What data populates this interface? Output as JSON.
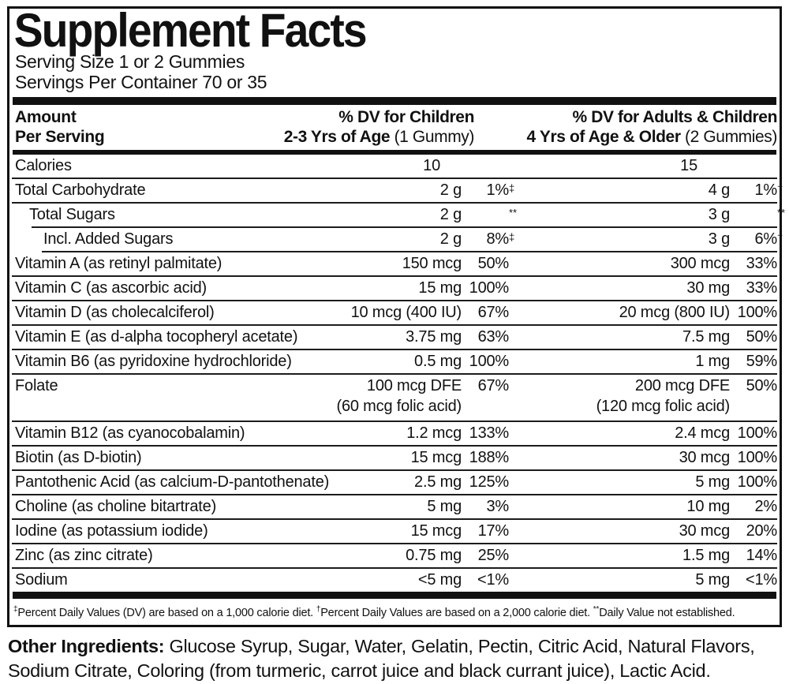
{
  "panel": {
    "title": "Supplement Facts",
    "serving_size": "Serving Size 1 or 2 Gummies",
    "servings_per_container": "Servings Per Container 70 or 35",
    "header": {
      "amount_line1": "Amount",
      "amount_line2": "Per Serving",
      "children": {
        "line1": "% DV for Children",
        "line2_bold": "2-3 Yrs of Age",
        "line2_normal": " (1 Gummy)"
      },
      "adults": {
        "line1": "% DV for Adults & Children",
        "line2_bold": "4 Yrs of Age & Older",
        "line2_normal": " (2 Gummies)"
      }
    },
    "rows": [
      {
        "label": "Calories",
        "cal": true,
        "a1": "10",
        "a2": "15"
      },
      {
        "label": "Total Carbohydrate",
        "sep": 0,
        "a1": "2 g",
        "dv1": "1%",
        "dv1s": "‡",
        "a2": "4 g",
        "dv2": "1%",
        "dv2s": "†"
      },
      {
        "label": "Total Sugars",
        "indent": 1,
        "sep": 0,
        "a1": "2 g",
        "dv1": "",
        "dv1s": "**",
        "a2": "3 g",
        "dv2": "",
        "dv2s": "**"
      },
      {
        "label": "Incl. Added Sugars",
        "indent": 2,
        "sep": 25,
        "a1": "2 g",
        "dv1": "8%",
        "dv1s": "‡",
        "a2": "3 g",
        "dv2": "6%",
        "dv2s": "†"
      },
      {
        "label": "Vitamin A (as retinyl palmitate)",
        "sep": 38,
        "a1": "150 mcg",
        "dv1": "50%",
        "a2": "300 mcg",
        "dv2": "33%"
      },
      {
        "label": "Vitamin C (as ascorbic acid)",
        "sep": 0,
        "a1": "15 mg",
        "dv1": "100%",
        "a2": "30 mg",
        "dv2": "33%"
      },
      {
        "label": "Vitamin D (as cholecalciferol)",
        "sep": 0,
        "a1": "10 mcg (400 IU)",
        "dv1": "67%",
        "a2": "20 mcg (800 IU)",
        "dv2": "100%"
      },
      {
        "label": "Vitamin E (as d-alpha tocopheryl acetate)",
        "sep": 0,
        "a1": "3.75 mg",
        "dv1": "63%",
        "a2": "7.5 mg",
        "dv2": "50%"
      },
      {
        "label": "Vitamin B6 (as pyridoxine hydrochloride)",
        "sep": 0,
        "a1": "0.5 mg",
        "dv1": "100%",
        "a2": "1 mg",
        "dv2": "59%"
      },
      {
        "label": "Folate",
        "sep": 0,
        "a1": "100 mcg DFE",
        "a1b": "(60 mcg folic acid)",
        "dv1": "67%",
        "a2": "200 mcg DFE",
        "a2b": "(120 mcg folic acid)",
        "dv2": "50%"
      },
      {
        "label": "Vitamin B12 (as cyanocobalamin)",
        "sep": 0,
        "a1": "1.2 mcg",
        "dv1": "133%",
        "a2": "2.4 mcg",
        "dv2": "100%"
      },
      {
        "label": "Biotin (as D-biotin)",
        "sep": 0,
        "a1": "15 mcg",
        "dv1": "188%",
        "a2": "30 mcg",
        "dv2": "100%"
      },
      {
        "label": "Pantothenic Acid (as calcium-D-pantothenate)",
        "sep": 0,
        "a1": "2.5 mg",
        "dv1": "125%",
        "a2": "5 mg",
        "dv2": "100%"
      },
      {
        "label": "Choline (as choline bitartrate)",
        "sep": 0,
        "a1": "5 mg",
        "dv1": "3%",
        "a2": "10 mg",
        "dv2": "2%"
      },
      {
        "label": "Iodine (as potassium iodide)",
        "sep": 0,
        "a1": "15 mcg",
        "dv1": "17%",
        "a2": "30 mcg",
        "dv2": "20%"
      },
      {
        "label": "Zinc (as zinc citrate)",
        "sep": 0,
        "a1": "0.75 mg",
        "dv1": "25%",
        "a2": "1.5 mg",
        "dv2": "14%"
      },
      {
        "label": "Sodium",
        "sep": 0,
        "a1": "<5 mg",
        "dv1": "<1%",
        "a2": "5 mg",
        "dv2": "<1%"
      }
    ],
    "footnote": {
      "s1": "‡",
      "t1": "Percent Daily Values (DV) are based on a 1,000 calorie diet. ",
      "s2": "†",
      "t2": "Percent Daily Values are based on a 2,000 calorie diet. ",
      "s3": "**",
      "t3": "Daily Value not established."
    }
  },
  "other_ingredients": {
    "label": "Other Ingredients:",
    "text": "Glucose Syrup, Sugar, Water, Gelatin, Pectin, Citric Acid, Natural Flavors, Sodium Citrate, Coloring (from turmeric, carrot juice and black currant juice), Lactic Acid."
  },
  "colors": {
    "ink": "#111111",
    "background": "#ffffff"
  }
}
